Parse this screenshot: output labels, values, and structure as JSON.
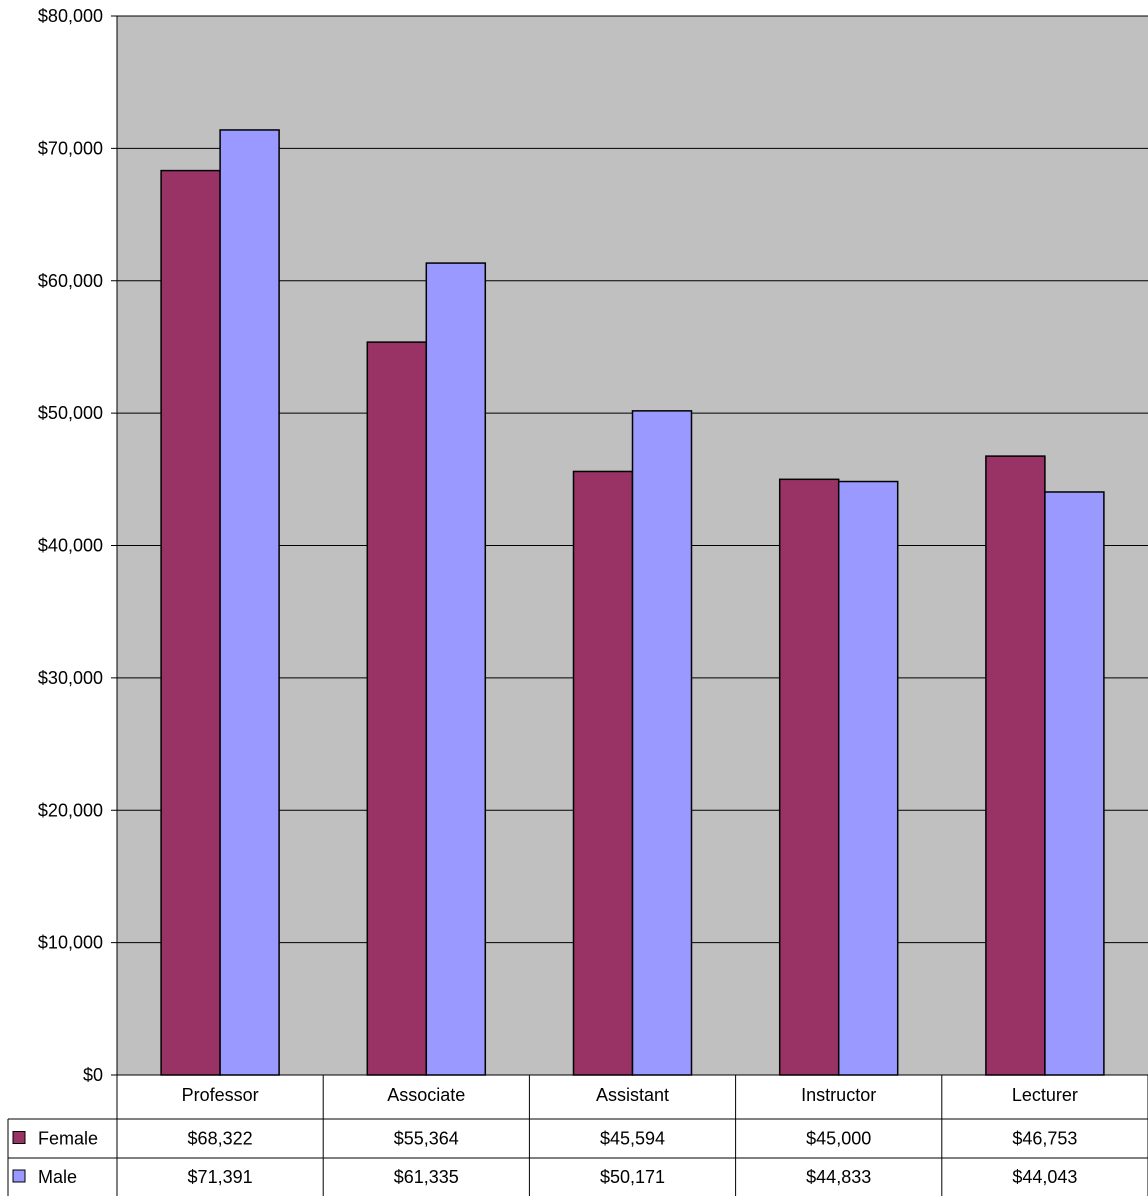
{
  "chart_data": {
    "type": "bar",
    "title": "",
    "xlabel": "",
    "ylabel": "",
    "categories": [
      "Professor",
      "Associate",
      "Assistant",
      "Instructor",
      "Lecturer"
    ],
    "series": [
      {
        "name": "Female",
        "color": "#993366",
        "values": [
          68322,
          55364,
          45594,
          45000,
          46753
        ],
        "labels": [
          "$68,322",
          "$55,364",
          "$45,594",
          "$45,000",
          "$46,753"
        ]
      },
      {
        "name": "Male",
        "color": "#9999FF",
        "values": [
          71391,
          61335,
          50171,
          44833,
          44043
        ],
        "labels": [
          "$71,391",
          "$61,335",
          "$50,171",
          "$44,833",
          "$44,043"
        ]
      }
    ],
    "ylim": [
      0,
      80000
    ],
    "yticks": [
      0,
      10000,
      20000,
      30000,
      40000,
      50000,
      60000,
      70000,
      80000
    ],
    "ytick_labels": [
      "$0",
      "$10,000",
      "$20,000",
      "$30,000",
      "$40,000",
      "$50,000",
      "$60,000",
      "$70,000",
      "$80,000"
    ],
    "grid": true,
    "plot_background": "#C0C0C0",
    "legend": "data-table-below"
  }
}
